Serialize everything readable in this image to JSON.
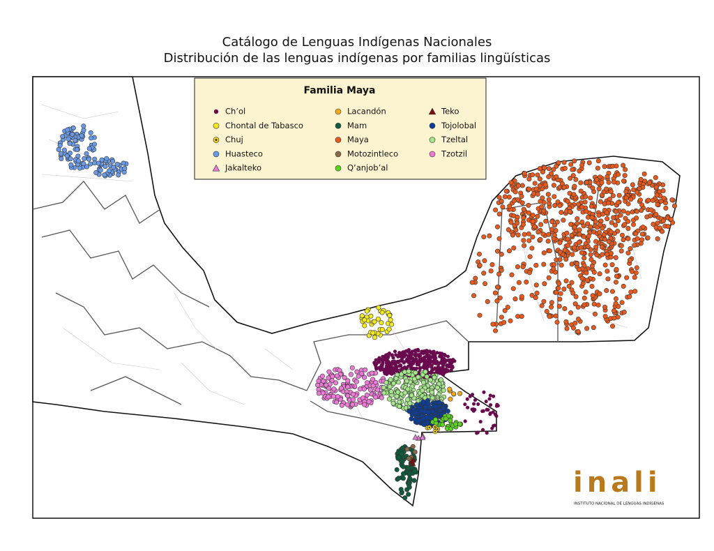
{
  "header": {
    "title": "Catálogo de Lenguas Indígenas Nacionales",
    "subtitle": "Distribución de las lenguas indígenas por familias lingüísticas"
  },
  "legend": {
    "title": "Familia Maya",
    "items": [
      {
        "label": "Ch’ol",
        "color": "#6a0a4e",
        "marker": "dot"
      },
      {
        "label": "Chontal de Tabasco",
        "color": "#f2ea1c",
        "marker": "circle"
      },
      {
        "label": "Chuj",
        "color": "#f2d21c",
        "marker": "circle-dot"
      },
      {
        "label": "Huasteco",
        "color": "#6a9be8",
        "marker": "circle"
      },
      {
        "label": "Jakalteko",
        "color": "#e77ad6",
        "marker": "triangle"
      },
      {
        "label": "Lacandón",
        "color": "#f2a81c",
        "marker": "circle"
      },
      {
        "label": "Mam",
        "color": "#0d5c3e",
        "marker": "circle"
      },
      {
        "label": "Maya",
        "color": "#e85a1c",
        "marker": "circle"
      },
      {
        "label": "Motozintleco",
        "color": "#8a6a46",
        "marker": "circle"
      },
      {
        "label": "Q’anjob’al",
        "color": "#5ad41c",
        "marker": "circle"
      },
      {
        "label": "Teko",
        "color": "#7a0d0d",
        "marker": "triangle"
      },
      {
        "label": "Tojolobal",
        "color": "#0d3e9a",
        "marker": "circle"
      },
      {
        "label": "Tzeltal",
        "color": "#a4e68a",
        "marker": "circle"
      },
      {
        "label": "Tzotzil",
        "color": "#ee7ad8",
        "marker": "circle"
      }
    ]
  },
  "logo": {
    "name": "inali",
    "caption": "INSTITUTO NACIONAL DE LENGUAS INDÍGENAS"
  }
}
